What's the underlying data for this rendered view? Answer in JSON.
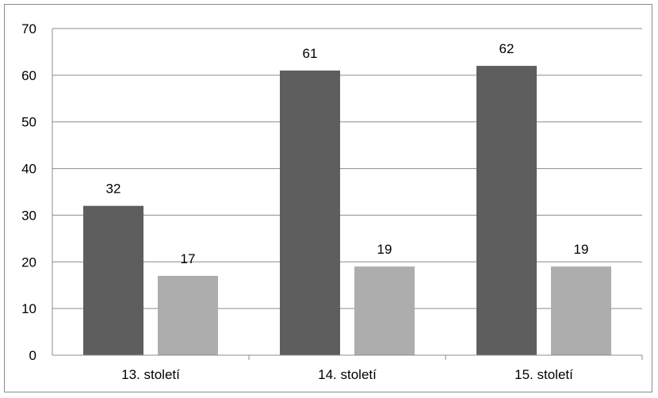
{
  "chart_data": {
    "type": "bar",
    "categories": [
      "13. století",
      "14. století",
      "15. století"
    ],
    "series": [
      {
        "values": [
          32,
          61,
          62
        ],
        "color": "#5e5e5e"
      },
      {
        "values": [
          17,
          19,
          19
        ],
        "color": "#adadad"
      }
    ],
    "title": "",
    "xlabel": "",
    "ylabel": "",
    "ylim": [
      0,
      70
    ],
    "yticks": [
      0,
      10,
      20,
      30,
      40,
      50,
      60,
      70
    ],
    "grid": true,
    "data_labels": true,
    "legend": "none"
  }
}
